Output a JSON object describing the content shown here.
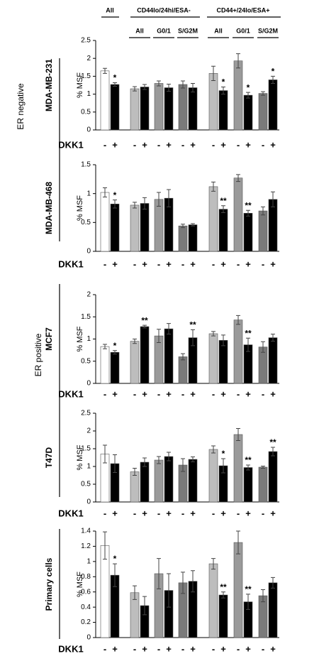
{
  "column_groups": [
    {
      "label": "All"
    },
    {
      "label": "CD44lo/24hi/ESA-",
      "subgroups": [
        "All",
        "G0/1",
        "S/G2M"
      ]
    },
    {
      "label": "CD44+/24lo/ESA+",
      "subgroups": [
        "All",
        "G0/1",
        "S/G2M"
      ]
    }
  ],
  "row_groups": [
    {
      "label": "ER negative"
    },
    {
      "label": "ER positive"
    }
  ],
  "chart_data": [
    {
      "type": "bar",
      "title": "MDA-MB-231",
      "y_label": "% MSF",
      "x_label": "DKK1",
      "ylim": [
        0,
        2.5
      ],
      "yticks": [
        0,
        0.5,
        1,
        1.5,
        2,
        2.5
      ],
      "series": [
        {
          "name": "-",
          "colors": [
            "#ffffff",
            "#bdbdbd",
            "#9a9a9a",
            "#7a7a7a",
            "#bdbdbd",
            "#9a9a9a",
            "#7a7a7a"
          ],
          "values": [
            1.65,
            1.15,
            1.3,
            1.27,
            1.58,
            1.93,
            1.02
          ],
          "errors": [
            0.07,
            0.06,
            0.07,
            0.1,
            0.2,
            0.2,
            0.05
          ]
        },
        {
          "name": "+",
          "color": "#000000",
          "values": [
            1.27,
            1.2,
            1.18,
            1.18,
            1.1,
            0.97,
            1.4
          ],
          "errors": [
            0.05,
            0.07,
            0.1,
            0.12,
            0.1,
            0.08,
            0.1
          ],
          "significance": [
            "*",
            null,
            null,
            null,
            "*",
            "*",
            "*"
          ]
        }
      ]
    },
    {
      "type": "bar",
      "title": "MDA-MB-468",
      "y_label": "% MSF",
      "x_label": "DKK1",
      "ylim": [
        0,
        1.5
      ],
      "yticks": [
        0,
        0.5,
        1,
        1.5
      ],
      "series": [
        {
          "name": "-",
          "colors": [
            "#ffffff",
            "#bdbdbd",
            "#9a9a9a",
            "#7a7a7a",
            "#bdbdbd",
            "#9a9a9a",
            "#7a7a7a"
          ],
          "values": [
            1.02,
            0.8,
            0.9,
            0.44,
            1.12,
            1.27,
            0.7
          ],
          "errors": [
            0.08,
            0.05,
            0.12,
            0.03,
            0.08,
            0.06,
            0.07
          ]
        },
        {
          "name": "+",
          "color": "#000000",
          "values": [
            0.82,
            0.83,
            0.92,
            0.46,
            0.73,
            0.66,
            0.9
          ],
          "errors": [
            0.07,
            0.1,
            0.15,
            0.02,
            0.06,
            0.05,
            0.13
          ],
          "significance": [
            "*",
            null,
            null,
            null,
            "**",
            "**",
            null
          ]
        }
      ]
    },
    {
      "type": "bar",
      "title": "MCF7",
      "y_label": "% MSF",
      "x_label": "DKK1",
      "ylim": [
        0,
        2
      ],
      "yticks": [
        0,
        0.5,
        1,
        1.5,
        2
      ],
      "series": [
        {
          "name": "-",
          "colors": [
            "#ffffff",
            "#bdbdbd",
            "#9a9a9a",
            "#7a7a7a",
            "#bdbdbd",
            "#9a9a9a",
            "#7a7a7a"
          ],
          "values": [
            0.83,
            0.95,
            1.07,
            0.6,
            1.12,
            1.43,
            0.82
          ],
          "errors": [
            0.05,
            0.05,
            0.15,
            0.07,
            0.05,
            0.1,
            0.12
          ]
        },
        {
          "name": "+",
          "color": "#000000",
          "values": [
            0.7,
            1.28,
            1.23,
            1.03,
            0.97,
            0.87,
            1.03
          ],
          "errors": [
            0.04,
            0.03,
            0.12,
            0.18,
            0.12,
            0.15,
            0.08
          ],
          "significance": [
            "*",
            "**",
            null,
            "**",
            null,
            "**",
            null
          ]
        }
      ]
    },
    {
      "type": "bar",
      "title": "T47D",
      "y_label": "% MSF",
      "x_label": "DKK1",
      "ylim": [
        0,
        2.5
      ],
      "yticks": [
        0,
        0.5,
        1,
        1.5,
        2,
        2.5
      ],
      "series": [
        {
          "name": "-",
          "colors": [
            "#ffffff",
            "#bdbdbd",
            "#9a9a9a",
            "#7a7a7a",
            "#bdbdbd",
            "#9a9a9a",
            "#7a7a7a"
          ],
          "values": [
            1.35,
            0.85,
            1.18,
            1.04,
            1.48,
            1.9,
            0.98
          ],
          "errors": [
            0.25,
            0.1,
            0.1,
            0.18,
            0.1,
            0.17,
            0.03
          ]
        },
        {
          "name": "+",
          "color": "#000000",
          "values": [
            1.08,
            1.12,
            1.28,
            1.2,
            1.02,
            0.97,
            1.42
          ],
          "errors": [
            0.25,
            0.12,
            0.12,
            0.07,
            0.2,
            0.07,
            0.12
          ],
          "significance": [
            null,
            null,
            null,
            null,
            "*",
            "**",
            "**"
          ]
        }
      ]
    },
    {
      "type": "bar",
      "title": "Primary cells",
      "y_label": "% MSF",
      "x_label": "DKK1",
      "ylim": [
        0,
        1.4
      ],
      "yticks": [
        0,
        0.2,
        0.4,
        0.6,
        0.8,
        1,
        1.2,
        1.4
      ],
      "series": [
        {
          "name": "-",
          "colors": [
            "#ffffff",
            "#bdbdbd",
            "#9a9a9a",
            "#7a7a7a",
            "#bdbdbd",
            "#9a9a9a",
            "#7a7a7a"
          ],
          "values": [
            1.21,
            0.59,
            0.84,
            0.72,
            0.97,
            1.25,
            0.55
          ],
          "errors": [
            0.18,
            0.09,
            0.2,
            0.14,
            0.07,
            0.15,
            0.08
          ]
        },
        {
          "name": "+",
          "color": "#000000",
          "values": [
            0.82,
            0.42,
            0.62,
            0.74,
            0.56,
            0.47,
            0.72
          ],
          "errors": [
            0.15,
            0.12,
            0.22,
            0.14,
            0.04,
            0.1,
            0.07
          ],
          "significance": [
            "*",
            null,
            null,
            null,
            "**",
            "**",
            null
          ]
        }
      ]
    }
  ]
}
